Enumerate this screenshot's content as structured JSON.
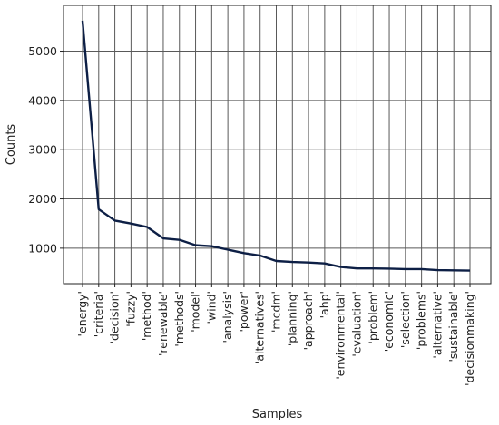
{
  "chart_data": {
    "type": "line",
    "xlabel": "Samples",
    "ylabel": "Counts",
    "categories": [
      "'energy'",
      "'criteria'",
      "'decision'",
      "'fuzzy'",
      "'method'",
      "'renewable'",
      "'methods'",
      "'model'",
      "'wind'",
      "'analysis'",
      "'power'",
      "'alternatives'",
      "'mcdm'",
      "'planning'",
      "'approach'",
      "'ahp'",
      "'environmental'",
      "'evaluation'",
      "'problem'",
      "'economic'",
      "'selection'",
      "'problems'",
      "'alternative'",
      "'sustainable'",
      "'decisionmaking'"
    ],
    "series": [
      {
        "values": [
          5620,
          1790,
          1560,
          1500,
          1430,
          1200,
          1170,
          1060,
          1040,
          970,
          900,
          850,
          740,
          720,
          710,
          690,
          620,
          590,
          590,
          585,
          575,
          575,
          555,
          550,
          545
        ]
      }
    ],
    "ylim": [
      280,
      5930
    ],
    "yticks": [
      1000,
      2000,
      3000,
      4000,
      5000
    ],
    "grid": true,
    "colors": {
      "line": "#0d1f45",
      "grid": "#595959",
      "axes": "#222222"
    }
  }
}
